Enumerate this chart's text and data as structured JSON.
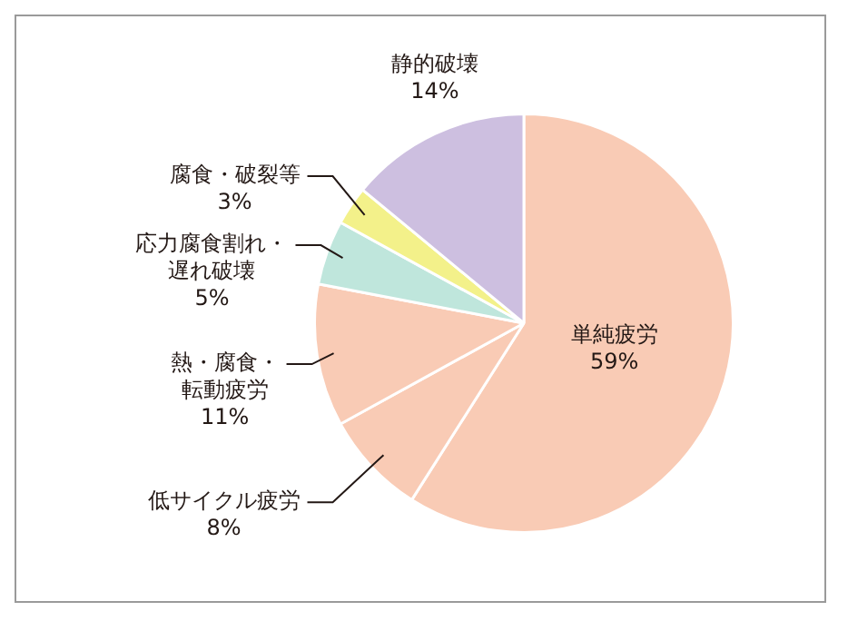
{
  "chart_data": {
    "type": "pie",
    "categories": [
      "単純疲労",
      "低サイクル疲労",
      "熱・腐食・転動疲労",
      "応力腐食割れ・遅れ破壊",
      "腐食・破裂等",
      "静的破壊"
    ],
    "values": [
      59,
      8,
      11,
      5,
      3,
      14
    ],
    "value_labels": [
      "59%",
      "8%",
      "11%",
      "5%",
      "3%",
      "14%"
    ],
    "colors": [
      "#f9cbb5",
      "#f9cbb5",
      "#f9cbb5",
      "#bfe6dc",
      "#f3f18a",
      "#cdbfe0"
    ],
    "legend": false
  }
}
